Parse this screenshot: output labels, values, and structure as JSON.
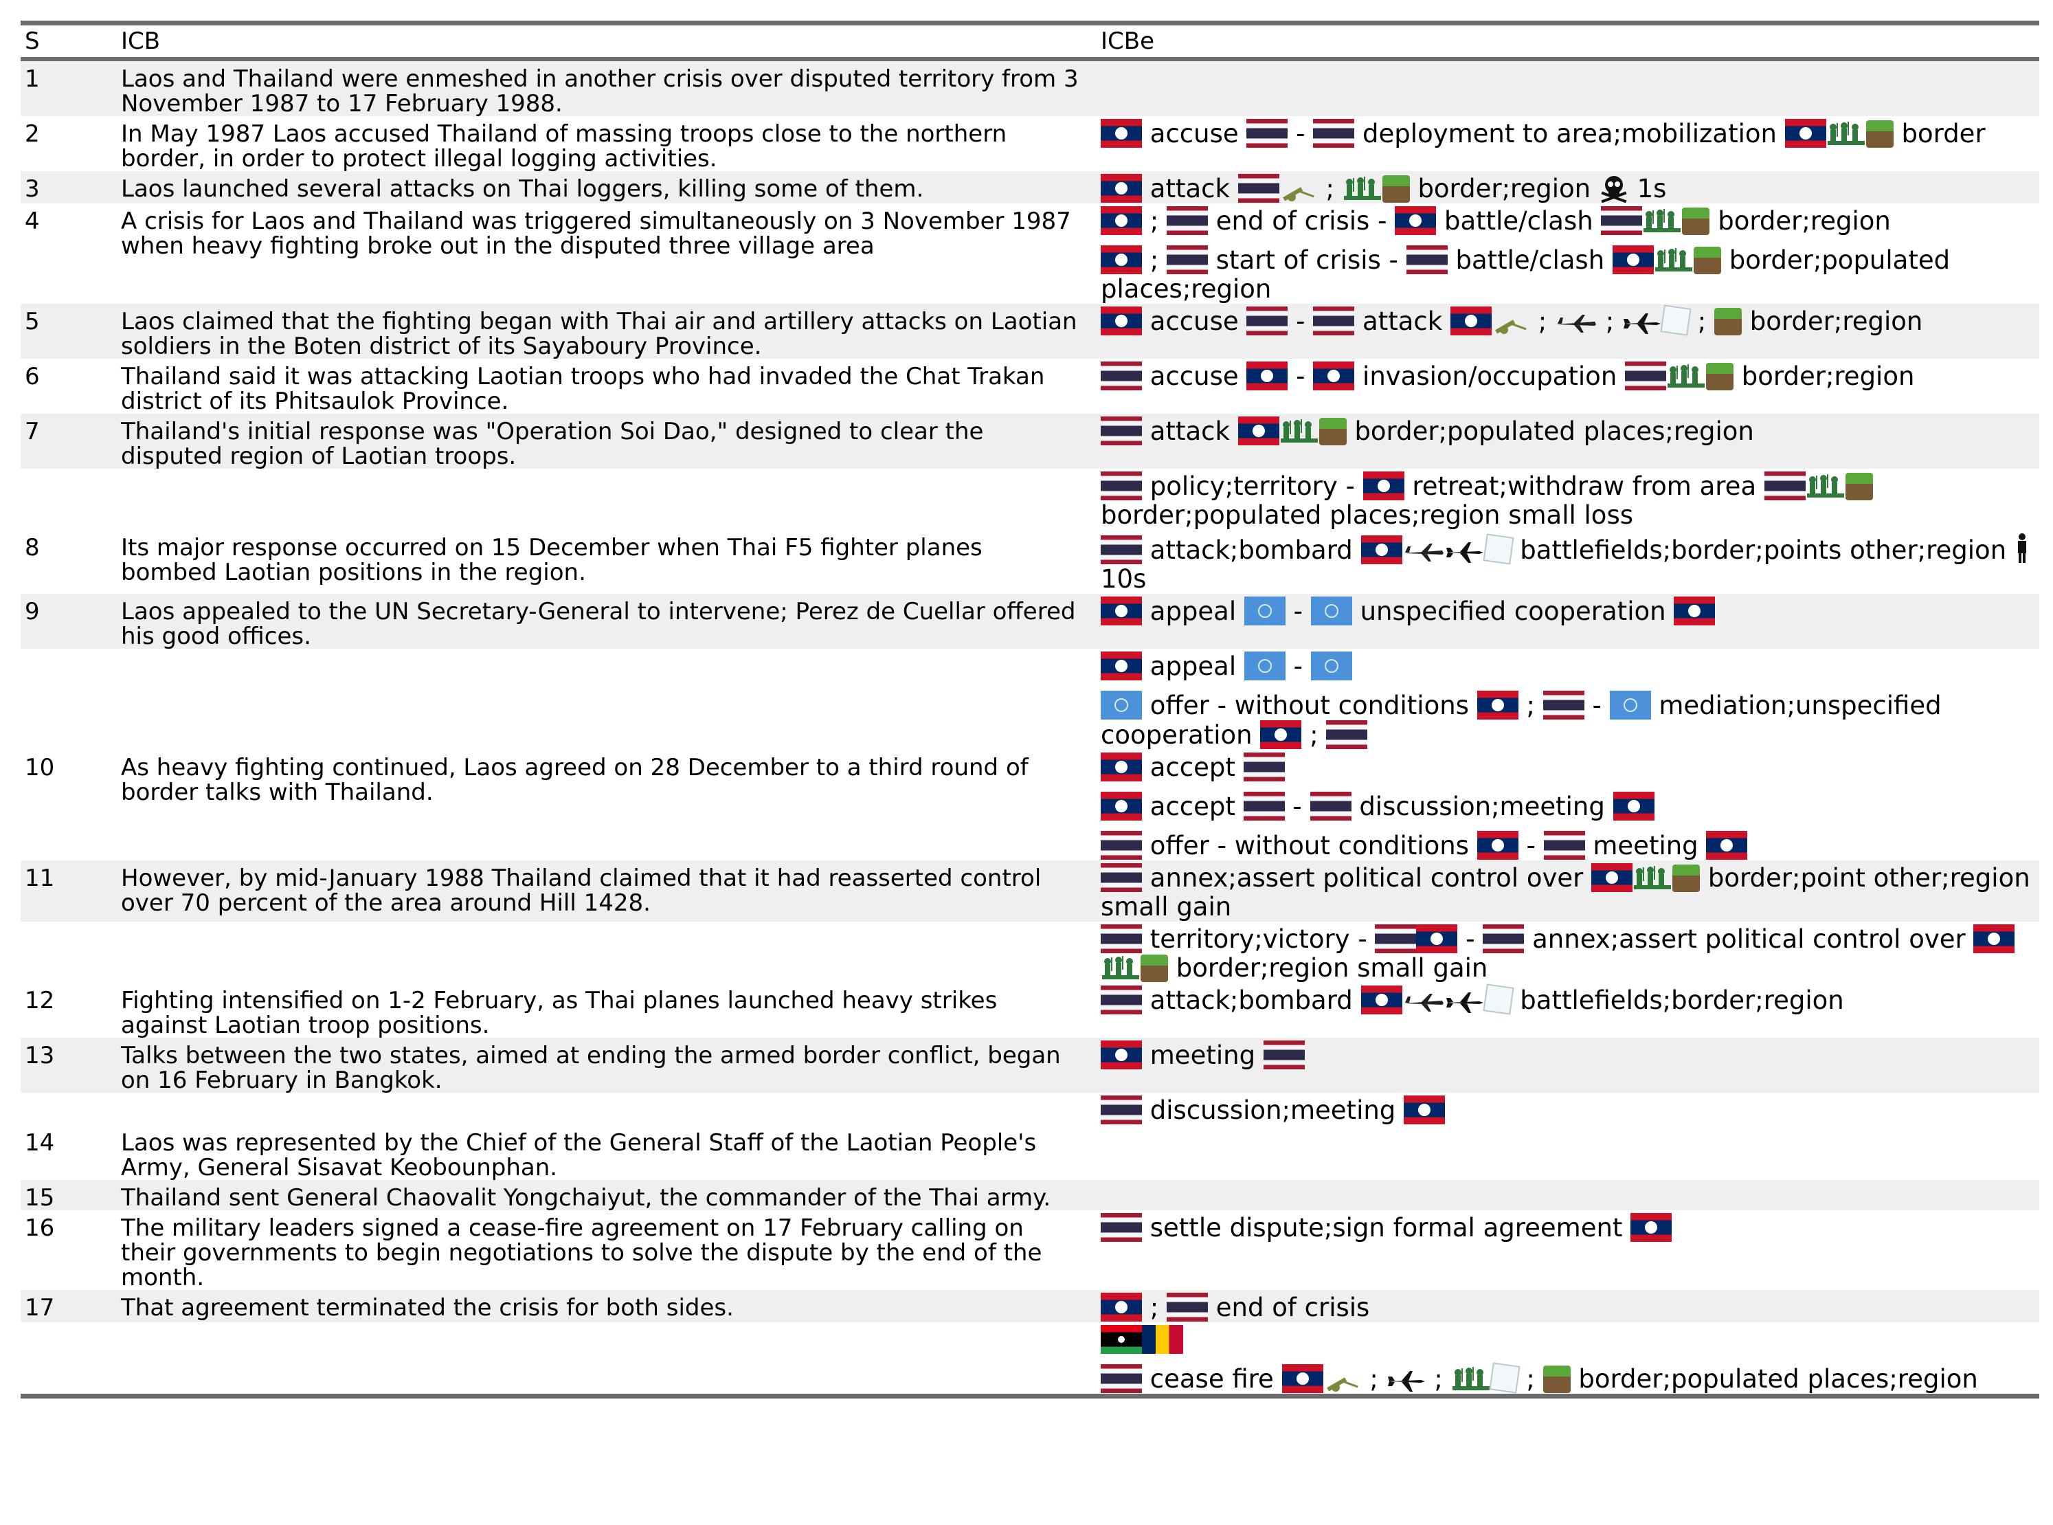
{
  "columns": {
    "s": "S",
    "icb": "ICB",
    "icbe": "ICBe"
  },
  "rows": [
    {
      "s": "1",
      "icb": "Laos and Thailand were enmeshed in another crisis over disputed territory from 3 November 1987 to 17 February 1988.",
      "shade": true,
      "icbe": []
    },
    {
      "s": "2",
      "icb": "In May 1987 Laos accused Thailand of massing troops close to the northern border, in order to protect illegal logging activities.",
      "shade": false,
      "icbe": [
        [
          {
            "f": "la"
          },
          {
            "t": "accuse"
          },
          {
            "f": "th"
          },
          {
            "t": "-"
          },
          {
            "f": "th"
          },
          {
            "t": "deployment to area;mobilization"
          },
          {
            "f": "la"
          },
          {
            "i": "troops"
          },
          {
            "i": "land"
          },
          {
            "t": "border"
          }
        ]
      ]
    },
    {
      "s": "3",
      "icb": "Laos launched several attacks on Thai loggers, killing some of them.",
      "shade": true,
      "icbe": [
        [
          {
            "f": "la"
          },
          {
            "t": "attack"
          },
          {
            "f": "th"
          },
          {
            "i": "arty"
          },
          {
            "t": ";"
          },
          {
            "i": "troops"
          },
          {
            "i": "land"
          },
          {
            "t": "border;region"
          },
          {
            "i": "skull"
          },
          {
            "t": "1s"
          }
        ]
      ]
    },
    {
      "s": "4",
      "icb": "A crisis for Laos and Thailand was triggered simultaneously on 3 November 1987 when heavy fighting broke out in the disputed three village area",
      "shade": false,
      "icbe": [
        [
          {
            "f": "la"
          },
          {
            "t": ";"
          },
          {
            "f": "th"
          },
          {
            "t": "end of crisis -"
          },
          {
            "f": "la"
          },
          {
            "t": "battle/clash"
          },
          {
            "f": "th"
          },
          {
            "i": "troops"
          },
          {
            "i": "land"
          },
          {
            "t": "border;region"
          }
        ],
        [
          {
            "f": "la"
          },
          {
            "t": ";"
          },
          {
            "f": "th"
          },
          {
            "t": "start of crisis -"
          },
          {
            "f": "th"
          },
          {
            "t": "battle/clash"
          },
          {
            "f": "la"
          },
          {
            "i": "troops"
          },
          {
            "i": "land"
          },
          {
            "t": "border;populated places;region"
          }
        ]
      ]
    },
    {
      "s": "5",
      "icb": "Laos claimed that the fighting began with Thai air and artillery attacks on Laotian soldiers in the Boten district of its Sayaboury Province.",
      "shade": true,
      "icbe": [
        [
          {
            "f": "la"
          },
          {
            "t": "accuse"
          },
          {
            "f": "th"
          },
          {
            "t": "-"
          },
          {
            "f": "th"
          },
          {
            "t": "attack"
          },
          {
            "f": "la"
          },
          {
            "i": "arty"
          },
          {
            "t": ";"
          },
          {
            "i": "plane"
          },
          {
            "t": ";"
          },
          {
            "i": "jet"
          },
          {
            "i": "cube"
          },
          {
            "t": ";"
          },
          {
            "i": "land"
          },
          {
            "t": "border;region"
          }
        ]
      ]
    },
    {
      "s": "6",
      "icb": "Thailand said it was attacking Laotian troops who had invaded the Chat Trakan district of its Phitsaulok Province.",
      "shade": false,
      "icbe": [
        [
          {
            "f": "th"
          },
          {
            "t": "accuse"
          },
          {
            "f": "la"
          },
          {
            "t": "-"
          },
          {
            "f": "la"
          },
          {
            "t": "invasion/occupation"
          },
          {
            "f": "th"
          },
          {
            "i": "troops"
          },
          {
            "i": "land"
          },
          {
            "t": "border;region"
          }
        ]
      ]
    },
    {
      "s": "7",
      "icb": "Thailand's initial response was \"Operation Soi Dao,\" designed to clear the disputed region of Laotian troops.",
      "shade": true,
      "icbe": [
        [
          {
            "f": "th"
          },
          {
            "t": "attack"
          },
          {
            "f": "la"
          },
          {
            "i": "troops"
          },
          {
            "i": "land"
          },
          {
            "t": "border;populated places;region"
          }
        ]
      ]
    },
    {
      "s": "",
      "icb": "",
      "shade": false,
      "icbe": [
        [
          {
            "f": "th"
          },
          {
            "t": "policy;territory -"
          },
          {
            "f": "la"
          },
          {
            "t": "retreat;withdraw from area"
          },
          {
            "f": "th"
          },
          {
            "i": "troops"
          },
          {
            "i": "land"
          },
          {
            "t": "border;populated places;region small loss"
          }
        ]
      ]
    },
    {
      "s": "8",
      "icb": "Its major response occurred on 15 December when Thai F5 fighter planes bombed Laotian positions in the region.",
      "shade": false,
      "icbe": [
        [
          {
            "f": "th"
          },
          {
            "t": "attack;bombard"
          },
          {
            "f": "la"
          },
          {
            "i": "plane"
          },
          {
            "i": "jet"
          },
          {
            "i": "cube"
          },
          {
            "t": "battlefields;border;points other;region"
          },
          {
            "i": "person"
          },
          {
            "t": "10s"
          }
        ]
      ]
    },
    {
      "s": "9",
      "icb": "Laos appealed to the UN Secretary-General to intervene; Perez de Cuellar offered his good offices.",
      "shade": true,
      "icbe": [
        [
          {
            "f": "la"
          },
          {
            "t": "appeal"
          },
          {
            "f": "un"
          },
          {
            "t": "-"
          },
          {
            "f": "un"
          },
          {
            "t": "unspecified cooperation"
          },
          {
            "f": "la"
          }
        ]
      ]
    },
    {
      "s": "",
      "icb": "",
      "shade": false,
      "icbe": [
        [
          {
            "f": "la"
          },
          {
            "t": "appeal"
          },
          {
            "f": "un"
          },
          {
            "t": "-"
          },
          {
            "f": "un"
          }
        ],
        [
          {
            "f": "un"
          },
          {
            "t": "offer - without conditions"
          },
          {
            "f": "la"
          },
          {
            "t": ";"
          },
          {
            "f": "th"
          },
          {
            "t": "-"
          },
          {
            "f": "un"
          },
          {
            "t": "mediation;unspecified cooperation"
          },
          {
            "f": "la"
          },
          {
            "t": ";"
          },
          {
            "f": "th"
          }
        ]
      ]
    },
    {
      "s": "10",
      "icb": "As heavy fighting continued, Laos agreed on 28 December to a third round of border talks with Thailand.",
      "shade": false,
      "icbe": [
        [
          {
            "f": "la"
          },
          {
            "t": "accept"
          },
          {
            "f": "th"
          }
        ],
        [
          {
            "f": "la"
          },
          {
            "t": "accept"
          },
          {
            "f": "th"
          },
          {
            "t": "-"
          },
          {
            "f": "th"
          },
          {
            "t": "discussion;meeting"
          },
          {
            "f": "la"
          }
        ],
        [
          {
            "f": "th"
          },
          {
            "t": "offer - without conditions"
          },
          {
            "f": "la"
          },
          {
            "t": "-"
          },
          {
            "f": "th"
          },
          {
            "t": "meeting"
          },
          {
            "f": "la"
          }
        ]
      ]
    },
    {
      "s": "11",
      "icb": "However, by mid-January 1988 Thailand claimed that it had reasserted control over 70 percent of the area around Hill 1428.",
      "shade": true,
      "icbe": [
        [
          {
            "f": "th"
          },
          {
            "t": "annex;assert political control over"
          },
          {
            "f": "la"
          },
          {
            "i": "troops"
          },
          {
            "i": "land"
          },
          {
            "t": "border;point other;region small gain"
          }
        ]
      ]
    },
    {
      "s": "",
      "icb": "",
      "shade": false,
      "icbe": [
        [
          {
            "f": "th"
          },
          {
            "t": "territory;victory -"
          },
          {
            "f": "th"
          },
          {
            "f": "la"
          },
          {
            "t": "-"
          },
          {
            "f": "th"
          },
          {
            "t": "annex;assert political control over"
          },
          {
            "f": "la"
          },
          {
            "i": "troops"
          },
          {
            "i": "land"
          },
          {
            "t": "border;region small gain"
          }
        ]
      ]
    },
    {
      "s": "12",
      "icb": "Fighting intensified on 1-2 February, as Thai planes launched heavy strikes against Laotian troop positions.",
      "shade": false,
      "icbe": [
        [
          {
            "f": "th"
          },
          {
            "t": "attack;bombard"
          },
          {
            "f": "la"
          },
          {
            "i": "plane"
          },
          {
            "i": "jet"
          },
          {
            "i": "cube"
          },
          {
            "t": "battlefields;border;region"
          }
        ]
      ]
    },
    {
      "s": "13",
      "icb": "Talks between the two states, aimed at ending the armed border conflict, began on 16 February in Bangkok.",
      "shade": true,
      "icbe": [
        [
          {
            "f": "la"
          },
          {
            "t": "meeting"
          },
          {
            "f": "th"
          }
        ]
      ]
    },
    {
      "s": "",
      "icb": "",
      "shade": false,
      "icbe": [
        [
          {
            "f": "th"
          },
          {
            "t": "discussion;meeting"
          },
          {
            "f": "la"
          }
        ]
      ]
    },
    {
      "s": "14",
      "icb": "Laos was represented by the Chief of the General Staff of the Laotian People's Army, General Sisavat Keobounphan.",
      "shade": false,
      "icbe": []
    },
    {
      "s": "15",
      "icb": "Thailand sent General Chaovalit Yongchaiyut, the commander of the Thai army.",
      "shade": true,
      "icbe": []
    },
    {
      "s": "16",
      "icb": "The military leaders signed a cease-fire agreement on 17 February calling on their governments to begin negotiations to solve the dispute by the end of the month.",
      "shade": false,
      "icbe": [
        [
          {
            "f": "th"
          },
          {
            "t": "settle dispute;sign formal agreement"
          },
          {
            "f": "la"
          }
        ]
      ]
    },
    {
      "s": "17",
      "icb": "That agreement terminated the crisis for both sides.",
      "shade": true,
      "icbe": [
        [
          {
            "f": "la"
          },
          {
            "t": ";"
          },
          {
            "f": "th"
          },
          {
            "t": "end of crisis"
          }
        ]
      ]
    },
    {
      "s": "",
      "icb": "",
      "shade": false,
      "icbe": [
        [
          {
            "f": "ly"
          },
          {
            "f": "td"
          }
        ],
        [
          {
            "f": "th"
          },
          {
            "t": "cease fire"
          },
          {
            "f": "la"
          },
          {
            "i": "arty"
          },
          {
            "t": ";"
          },
          {
            "i": "jet"
          },
          {
            "t": ";"
          },
          {
            "i": "troops"
          },
          {
            "i": "cube"
          },
          {
            "t": ";"
          },
          {
            "i": "land"
          },
          {
            "t": "border;populated places;region"
          }
        ]
      ]
    }
  ],
  "row_heights": null,
  "icons": {
    "la": "laos-flag-icon",
    "th": "thailand-flag-icon",
    "un": "un-flag-icon",
    "ly": "libya-flag-icon",
    "td": "chad-flag-icon",
    "troops": "soldiers-icon",
    "land": "land-block-icon",
    "arty": "artillery-icon",
    "plane": "plane-icon",
    "jet": "jet-icon",
    "cube": "cube-icon",
    "skull": "skull-icon",
    "person": "person-icon"
  },
  "colors": {
    "shade": "#efefef",
    "rule": "#6b6b6b",
    "soldiers": "#2f7a3b",
    "artillery": "#7a8a3a"
  }
}
